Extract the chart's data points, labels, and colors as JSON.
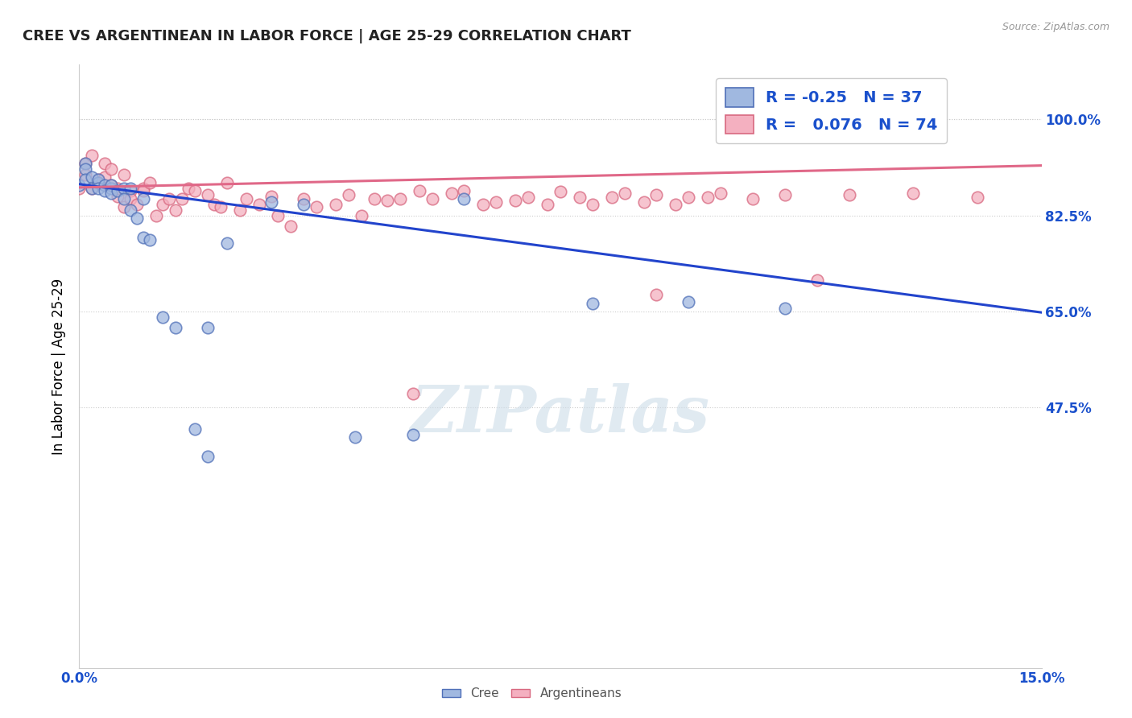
{
  "title": "CREE VS ARGENTINEAN IN LABOR FORCE | AGE 25-29 CORRELATION CHART",
  "source": "Source: ZipAtlas.com",
  "ylabel": "In Labor Force | Age 25-29",
  "xlim": [
    0.0,
    0.15
  ],
  "ylim": [
    0.0,
    1.1
  ],
  "yticks": [
    0.475,
    0.65,
    0.825,
    1.0
  ],
  "ytick_labels": [
    "47.5%",
    "65.0%",
    "82.5%",
    "100.0%"
  ],
  "cree_color": "#a0b8e0",
  "cree_edge_color": "#5070b8",
  "argentinean_color": "#f4b0c0",
  "argentinean_edge_color": "#d86880",
  "cree_line_color": "#2244cc",
  "argentinean_line_color": "#e06888",
  "cree_R": -0.25,
  "cree_N": 37,
  "argentinean_R": 0.076,
  "argentinean_N": 74,
  "legend_text_color": "#1a50cc",
  "watermark_color": "#ccdce8",
  "background_color": "#ffffff",
  "cree_x": [
    0.0,
    0.001,
    0.001,
    0.001,
    0.002,
    0.002,
    0.003,
    0.003,
    0.003,
    0.004,
    0.004,
    0.005,
    0.005,
    0.005,
    0.006,
    0.007,
    0.007,
    0.008,
    0.008,
    0.009,
    0.01,
    0.01,
    0.011,
    0.013,
    0.015,
    0.018,
    0.02,
    0.023,
    0.03,
    0.035,
    0.043,
    0.052,
    0.06,
    0.08,
    0.095,
    0.11,
    0.02
  ],
  "cree_y": [
    0.88,
    0.92,
    0.91,
    0.89,
    0.895,
    0.875,
    0.885,
    0.89,
    0.875,
    0.88,
    0.87,
    0.875,
    0.88,
    0.865,
    0.87,
    0.875,
    0.855,
    0.835,
    0.875,
    0.82,
    0.785,
    0.855,
    0.78,
    0.64,
    0.62,
    0.435,
    0.62,
    0.775,
    0.85,
    0.845,
    0.42,
    0.425,
    0.855,
    0.665,
    0.668,
    0.655,
    0.385
  ],
  "arg_x": [
    0.0,
    0.001,
    0.001,
    0.002,
    0.002,
    0.003,
    0.003,
    0.004,
    0.004,
    0.005,
    0.005,
    0.006,
    0.006,
    0.007,
    0.007,
    0.008,
    0.008,
    0.009,
    0.01,
    0.01,
    0.011,
    0.012,
    0.013,
    0.014,
    0.015,
    0.016,
    0.017,
    0.018,
    0.02,
    0.021,
    0.022,
    0.023,
    0.025,
    0.026,
    0.028,
    0.03,
    0.031,
    0.033,
    0.035,
    0.037,
    0.04,
    0.042,
    0.044,
    0.046,
    0.048,
    0.05,
    0.053,
    0.055,
    0.058,
    0.06,
    0.063,
    0.065,
    0.068,
    0.07,
    0.073,
    0.075,
    0.078,
    0.08,
    0.083,
    0.085,
    0.088,
    0.09,
    0.093,
    0.095,
    0.098,
    0.1,
    0.105,
    0.11,
    0.115,
    0.12,
    0.09,
    0.13,
    0.14,
    0.052
  ],
  "arg_y": [
    0.875,
    0.92,
    0.9,
    0.875,
    0.935,
    0.885,
    0.89,
    0.92,
    0.895,
    0.91,
    0.88,
    0.86,
    0.875,
    0.9,
    0.84,
    0.87,
    0.855,
    0.845,
    0.875,
    0.87,
    0.885,
    0.825,
    0.845,
    0.855,
    0.835,
    0.855,
    0.875,
    0.87,
    0.862,
    0.845,
    0.84,
    0.885,
    0.835,
    0.855,
    0.845,
    0.86,
    0.825,
    0.805,
    0.855,
    0.84,
    0.845,
    0.862,
    0.825,
    0.855,
    0.852,
    0.855,
    0.87,
    0.855,
    0.865,
    0.87,
    0.845,
    0.85,
    0.852,
    0.858,
    0.845,
    0.868,
    0.858,
    0.845,
    0.858,
    0.865,
    0.85,
    0.862,
    0.845,
    0.858,
    0.858,
    0.865,
    0.855,
    0.862,
    0.707,
    0.862,
    0.68,
    0.865,
    0.858,
    0.5
  ]
}
